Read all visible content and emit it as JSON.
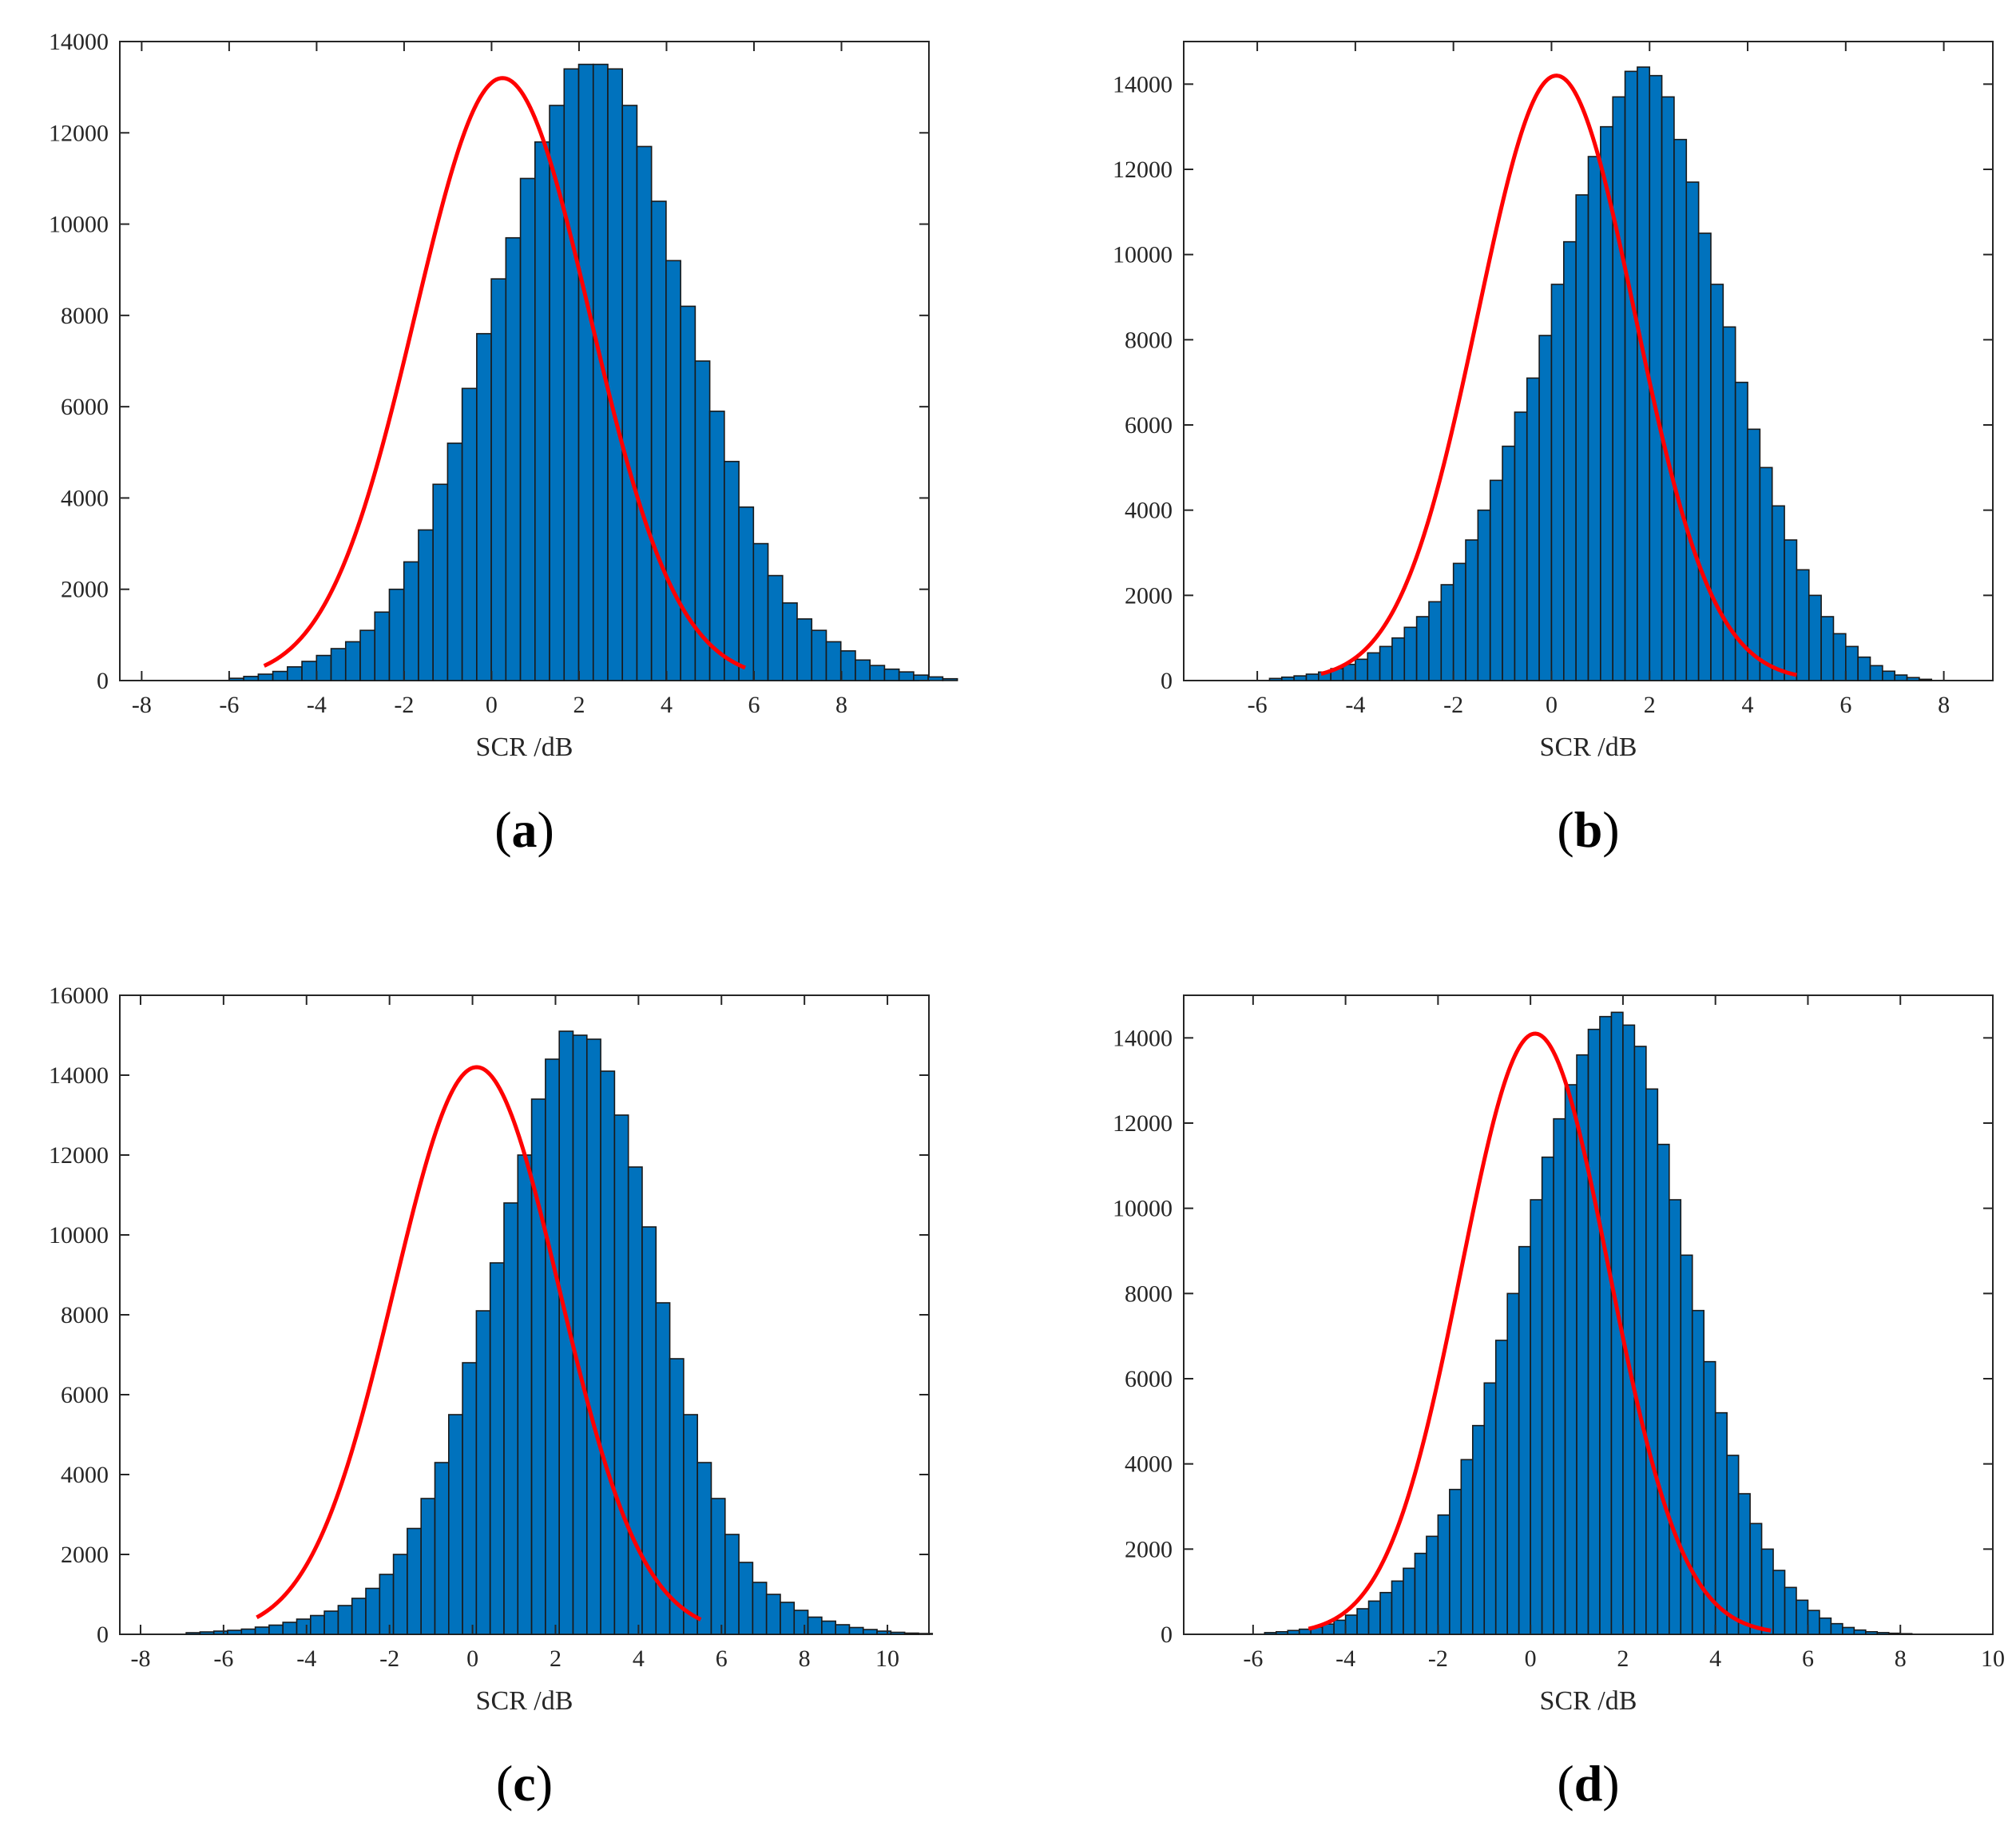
{
  "chart_data": [
    {
      "panel_label": "a",
      "type": "bar",
      "subtype": "histogram with fitted normal curve",
      "xlabel": "SCR /dB",
      "ylabel": "",
      "xlim": [
        -8.5,
        10
      ],
      "ylim": [
        0,
        14000
      ],
      "xticks": [
        -8,
        -6,
        -4,
        -2,
        0,
        2,
        4,
        6,
        8
      ],
      "yticks": [
        0,
        2000,
        4000,
        6000,
        8000,
        10000,
        12000,
        14000
      ],
      "bin_width": 0.333,
      "bin_start": -6.0,
      "values": [
        50,
        90,
        140,
        200,
        300,
        420,
        550,
        700,
        850,
        1100,
        1500,
        2000,
        2600,
        3300,
        4300,
        5200,
        6400,
        7600,
        8800,
        9700,
        11000,
        11800,
        12600,
        13400,
        13500,
        13500,
        13400,
        12600,
        11700,
        10500,
        9200,
        8200,
        7000,
        5900,
        4800,
        3800,
        3000,
        2300,
        1700,
        1350,
        1100,
        850,
        650,
        450,
        330,
        250,
        190,
        120,
        80,
        40
      ],
      "fit": {
        "mean": 0.25,
        "std": 2.0,
        "peak": 13200,
        "x_range": [
          -5.2,
          5.8
        ]
      },
      "colors": {
        "bar": "#0072BD",
        "edge": "#1a1a1a",
        "fit": "#ff0000"
      },
      "grid": false
    },
    {
      "panel_label": "b",
      "type": "bar",
      "subtype": "histogram with fitted normal curve",
      "xlabel": "SCR /dB",
      "ylabel": "",
      "xlim": [
        -7.5,
        9.0
      ],
      "ylim": [
        0,
        15000
      ],
      "xticks": [
        -6,
        -4,
        -2,
        0,
        2,
        4,
        6,
        8
      ],
      "yticks": [
        0,
        2000,
        4000,
        6000,
        8000,
        10000,
        12000,
        14000
      ],
      "bin_width": 0.25,
      "bin_start": -5.75,
      "values": [
        50,
        80,
        110,
        150,
        200,
        280,
        380,
        500,
        650,
        800,
        1000,
        1250,
        1500,
        1850,
        2250,
        2750,
        3300,
        4000,
        4700,
        5500,
        6300,
        7100,
        8100,
        9300,
        10300,
        11400,
        12300,
        13000,
        13700,
        14300,
        14400,
        14200,
        13700,
        12700,
        11700,
        10500,
        9300,
        8300,
        7000,
        5900,
        5000,
        4100,
        3300,
        2600,
        2000,
        1500,
        1100,
        800,
        550,
        350,
        220,
        130,
        70,
        30
      ],
      "fit": {
        "mean": 0.1,
        "std": 1.6,
        "peak": 14200,
        "x_range": [
          -4.7,
          5.0
        ]
      },
      "colors": {
        "bar": "#0072BD",
        "edge": "#1a1a1a",
        "fit": "#ff0000"
      },
      "grid": false
    },
    {
      "panel_label": "c",
      "type": "bar",
      "subtype": "histogram with fitted normal curve",
      "xlabel": "SCR /dB",
      "ylabel": "",
      "xlim": [
        -8.5,
        11
      ],
      "ylim": [
        0,
        16000
      ],
      "xticks": [
        -8,
        -6,
        -4,
        -2,
        0,
        2,
        4,
        6,
        8,
        10
      ],
      "yticks": [
        0,
        2000,
        4000,
        6000,
        8000,
        10000,
        12000,
        14000,
        16000
      ],
      "bin_width": 0.333,
      "bin_start": -6.9,
      "values": [
        40,
        60,
        80,
        100,
        130,
        180,
        230,
        300,
        380,
        470,
        580,
        720,
        900,
        1150,
        1500,
        2000,
        2650,
        3400,
        4300,
        5500,
        6800,
        8100,
        9300,
        10800,
        12000,
        13400,
        14400,
        15100,
        15000,
        14900,
        14100,
        13000,
        11700,
        10200,
        8300,
        6900,
        5500,
        4300,
        3400,
        2500,
        1800,
        1300,
        1000,
        800,
        600,
        430,
        330,
        240,
        170,
        120,
        80,
        50,
        30,
        20
      ],
      "fit": {
        "mean": 0.1,
        "std": 2.0,
        "peak": 14200,
        "x_range": [
          -5.2,
          5.5
        ]
      },
      "colors": {
        "bar": "#0072BD",
        "edge": "#1a1a1a",
        "fit": "#ff0000"
      },
      "grid": false
    },
    {
      "panel_label": "d",
      "type": "bar",
      "subtype": "histogram with fitted normal curve",
      "xlabel": "SCR /dB",
      "ylabel": "",
      "xlim": [
        -7.5,
        10.0
      ],
      "ylim": [
        0,
        15000
      ],
      "xticks": [
        -6,
        -4,
        -2,
        0,
        2,
        4,
        6,
        8,
        10
      ],
      "yticks": [
        0,
        2000,
        4000,
        6000,
        8000,
        10000,
        12000,
        14000
      ],
      "bin_width": 0.25,
      "bin_start": -5.75,
      "values": [
        40,
        60,
        90,
        120,
        170,
        240,
        330,
        450,
        600,
        780,
        980,
        1250,
        1550,
        1900,
        2300,
        2800,
        3400,
        4100,
        4900,
        5900,
        6900,
        8000,
        9100,
        10200,
        11200,
        12100,
        12900,
        13600,
        14200,
        14500,
        14600,
        14300,
        13800,
        12800,
        11500,
        10200,
        8900,
        7600,
        6400,
        5200,
        4200,
        3300,
        2600,
        2000,
        1500,
        1100,
        800,
        560,
        380,
        250,
        160,
        100,
        60,
        40,
        25,
        15
      ],
      "fit": {
        "mean": 0.1,
        "std": 1.6,
        "peak": 14100,
        "x_range": [
          -4.8,
          5.2
        ]
      },
      "colors": {
        "bar": "#0072BD",
        "edge": "#1a1a1a",
        "fit": "#ff0000"
      },
      "grid": false
    }
  ]
}
